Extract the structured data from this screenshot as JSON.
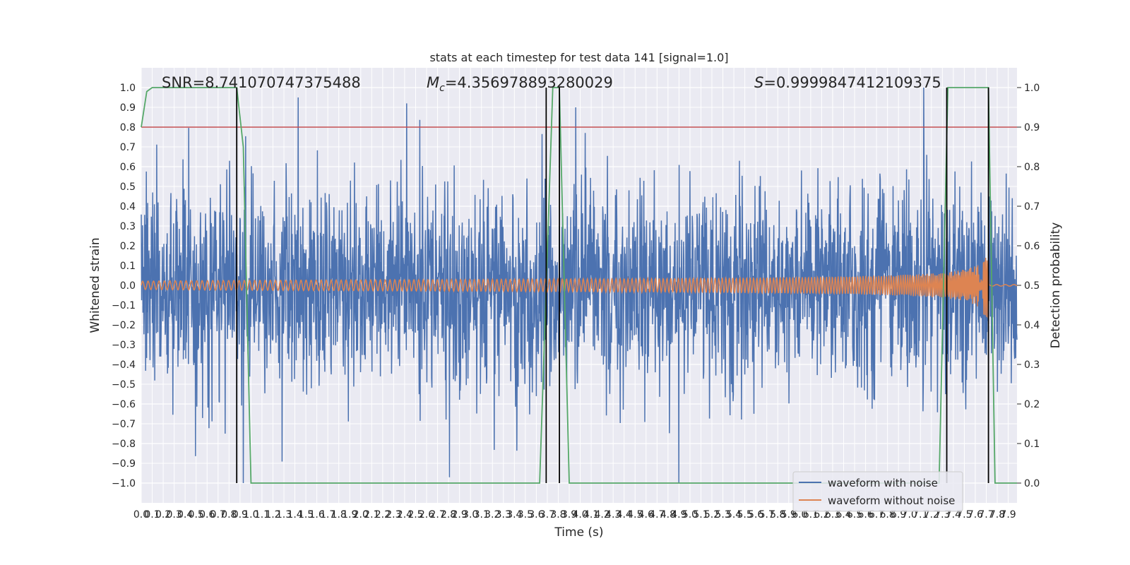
{
  "chart_data": {
    "type": "line",
    "title": "stats at each timestep for test data 141 [signal=1.0]",
    "xlabel": "Time (s)",
    "ylabel": "Whitened strain",
    "ylabel_right": "Detection probability",
    "xlim": [
      0.0,
      7.98
    ],
    "ylim": [
      -1.1,
      1.1
    ],
    "ylim_right": [
      -0.05,
      1.05
    ],
    "x_ticks": [
      "0.0",
      "0.1",
      "0.2",
      "0.3",
      "0.4",
      "0.5",
      "0.6",
      "0.7",
      "0.8",
      "0.9",
      "1.0",
      "1.1",
      "1.2",
      "1.3",
      "1.4",
      "1.5",
      "1.6",
      "1.7",
      "1.8",
      "1.9",
      "2.0",
      "2.1",
      "2.2",
      "2.3",
      "2.4",
      "2.5",
      "2.6",
      "2.7",
      "2.8",
      "2.9",
      "3.0",
      "3.1",
      "3.2",
      "3.3",
      "3.4",
      "3.5",
      "3.6",
      "3.7",
      "3.8",
      "3.9",
      "4.0",
      "4.1",
      "4.2",
      "4.3",
      "4.4",
      "4.5",
      "4.6",
      "4.7",
      "4.8",
      "4.9",
      "5.0",
      "5.1",
      "5.2",
      "5.3",
      "5.4",
      "5.5",
      "5.6",
      "5.7",
      "5.8",
      "5.9",
      "6.0",
      "6.1",
      "6.2",
      "6.3",
      "6.4",
      "6.5",
      "6.6",
      "6.7",
      "6.8",
      "6.9",
      "7.0",
      "7.1",
      "7.2",
      "7.3",
      "7.4",
      "7.5",
      "7.6",
      "7.7",
      "7.8",
      "7.9"
    ],
    "y_ticks": [
      "−1.0",
      "−0.9",
      "−0.8",
      "−0.7",
      "−0.6",
      "−0.5",
      "−0.4",
      "−0.3",
      "−0.2",
      "−0.1",
      "0.0",
      "0.1",
      "0.2",
      "0.3",
      "0.4",
      "0.5",
      "0.6",
      "0.7",
      "0.8",
      "0.9",
      "1.0"
    ],
    "y_ticks_right": [
      "0.0",
      "0.1",
      "0.2",
      "0.3",
      "0.4",
      "0.5",
      "0.6",
      "0.7",
      "0.8",
      "0.9",
      "1.0"
    ],
    "annotations": {
      "snr": "SNR=8.741070747375488",
      "mc_symbol": "M",
      "mc_sub": "c",
      "mc_value": "=4.356978893280029",
      "s_symbol": "S",
      "s_value": "=0.9999847412109375"
    },
    "legend": {
      "placement": "lower right",
      "entries": [
        "waveform with noise",
        "waveform without noise"
      ]
    },
    "threshold": {
      "axis": "right",
      "value": 0.9,
      "color": "#c44e52"
    },
    "vertical_markers": [
      0.87,
      3.69,
      3.81,
      7.34,
      7.72
    ],
    "series": [
      {
        "name": "waveform with noise",
        "axis": "left",
        "color": "#4c72b0",
        "kind": "noise",
        "sigma": 0.25,
        "extremes": [
          {
            "x": 1.43,
            "y": 0.95
          },
          {
            "x": 2.42,
            "y": 0.92
          },
          {
            "x": 3.96,
            "y": 0.9
          },
          {
            "x": 4.9,
            "y": -1.0
          },
          {
            "x": 7.13,
            "y": 1.0
          }
        ]
      },
      {
        "name": "waveform without noise",
        "axis": "left",
        "color": "#dd8452",
        "kind": "chirp",
        "amp_start": 0.02,
        "amp_end": 0.17,
        "merger": 7.72
      },
      {
        "name": "detection probability",
        "axis": "right",
        "color": "#55a868",
        "x": [
          0.0,
          0.05,
          0.1,
          0.87,
          0.93,
          1.0,
          3.63,
          3.75,
          3.81,
          3.9,
          7.27,
          7.35,
          7.72,
          7.78,
          7.98
        ],
        "values": [
          0.9,
          0.99,
          1.0,
          1.0,
          0.85,
          0.0,
          0.0,
          1.0,
          1.0,
          0.0,
          0.0,
          1.0,
          1.0,
          0.0,
          0.0
        ]
      }
    ]
  }
}
